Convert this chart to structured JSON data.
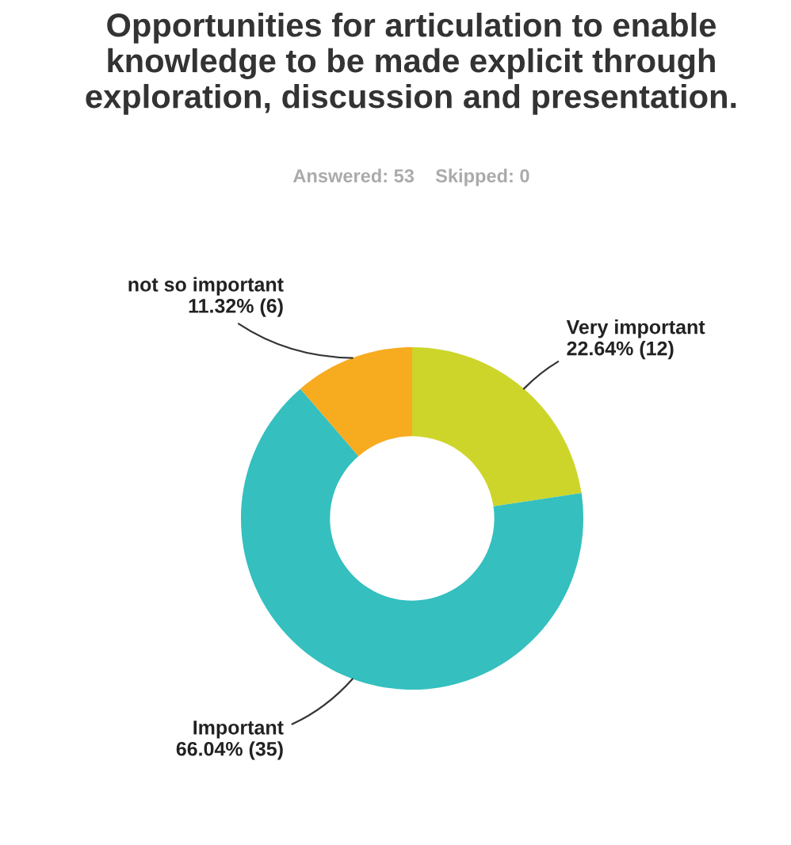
{
  "chart_data": {
    "type": "donut",
    "title": "Opportunities for articulation to enable knowledge to be made explicit through exploration, discussion and presentation.",
    "subtitle": "Answered: 53    Skipped: 0",
    "categories": [
      "Very important",
      "Important",
      "not so important"
    ],
    "values": [
      12,
      35,
      6
    ],
    "colors": [
      "#cdd52a",
      "#35bfbf",
      "#f7ab1f"
    ],
    "value_labels": [
      "22.64% (12)",
      "66.04% (35)",
      "11.32% (6)"
    ]
  }
}
